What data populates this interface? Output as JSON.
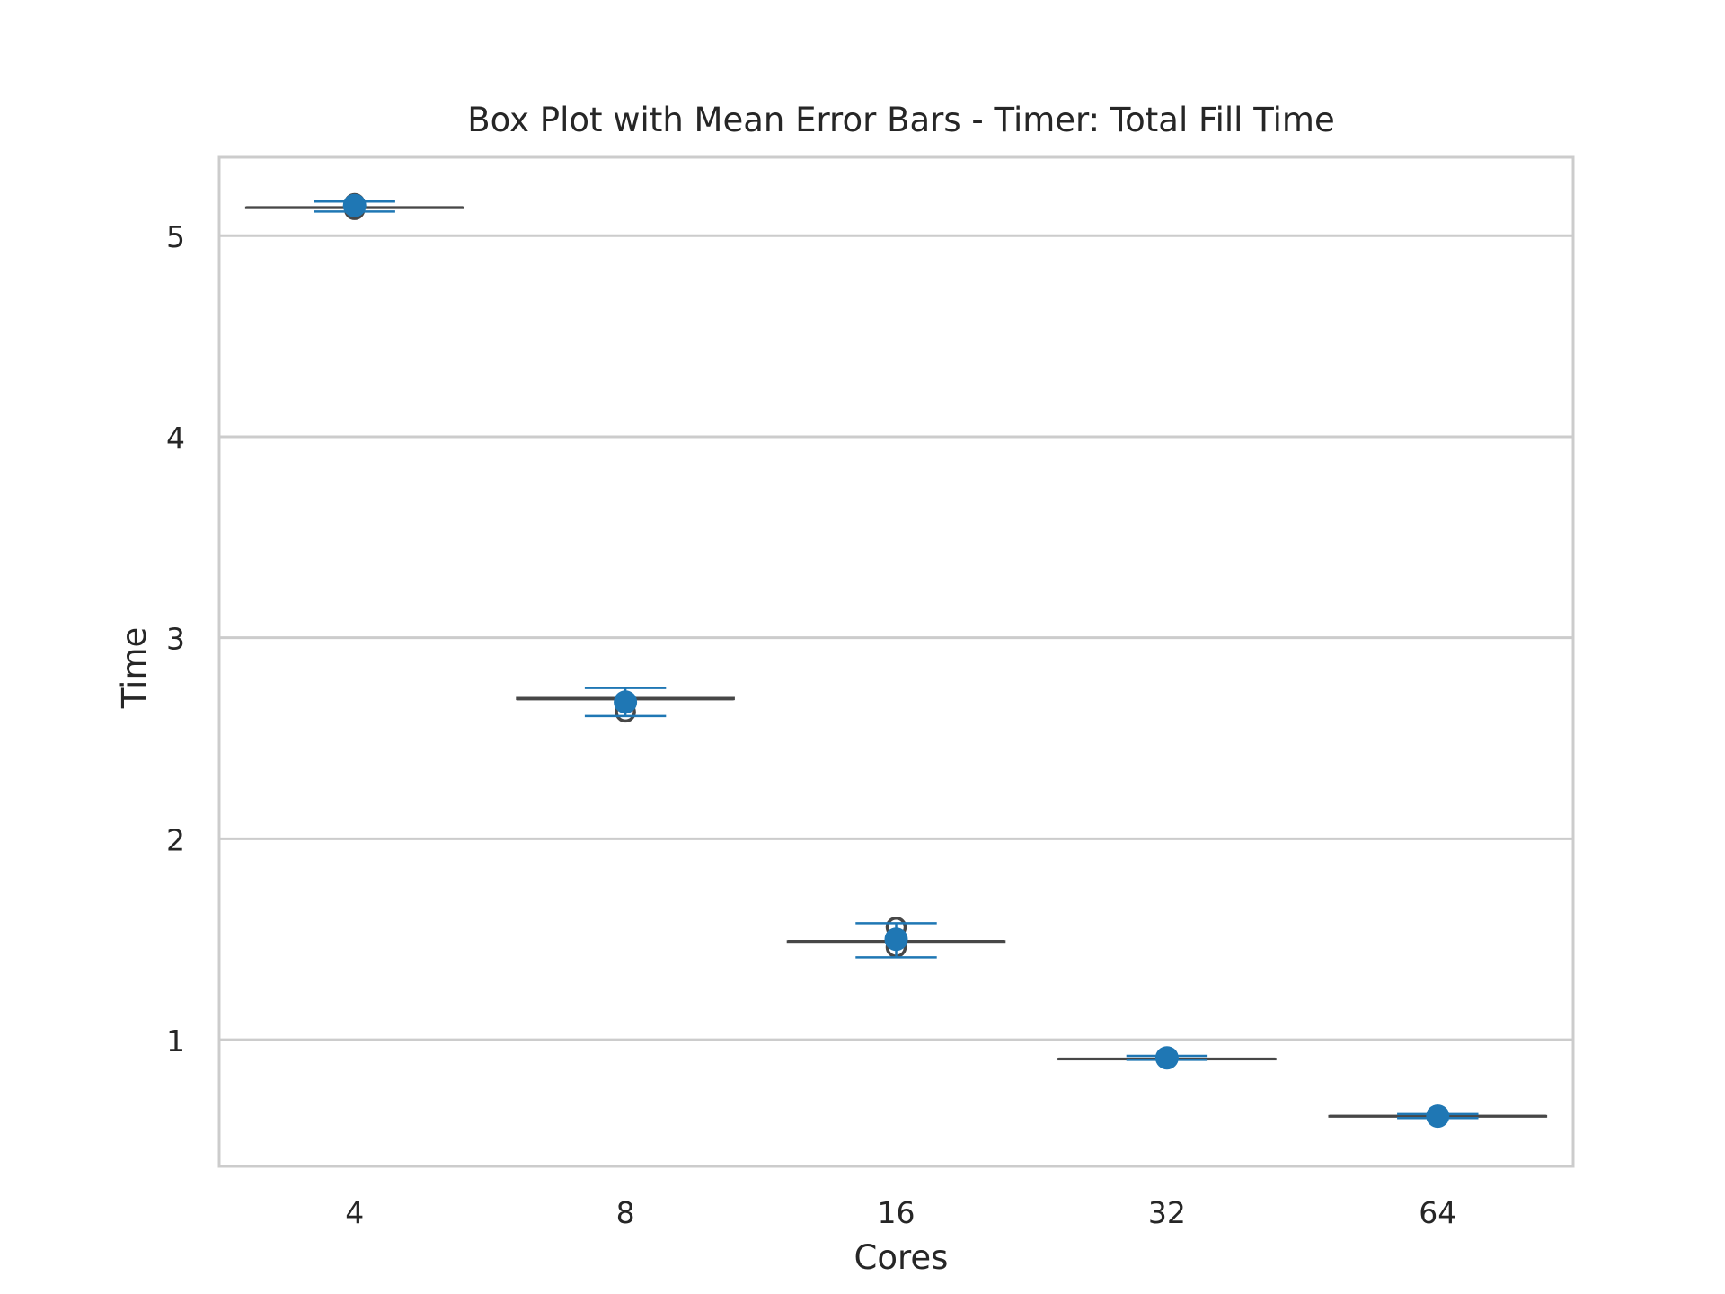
{
  "chart_data": {
    "type": "box",
    "title": "Box Plot with Mean Error Bars - Timer: Total Fill Time",
    "xlabel": "Cores",
    "ylabel": "Time",
    "categories": [
      "4",
      "8",
      "16",
      "32",
      "64"
    ],
    "ylim": [
      0.37,
      5.39
    ],
    "yticks": [
      1,
      2,
      3,
      4,
      5
    ],
    "grid": "horizontal",
    "colors": {
      "box_line": "#474747",
      "mean": "#1f77b4",
      "grid": "#cccccc",
      "frame": "#cccccc"
    },
    "boxes": [
      {
        "category": "4",
        "q1": 5.14,
        "median": 5.14,
        "q3": 5.14,
        "whisker_low": 5.14,
        "whisker_high": 5.14,
        "outliers": [
          5.13,
          5.16
        ]
      },
      {
        "category": "8",
        "q1": 2.695,
        "median": 2.695,
        "q3": 2.7,
        "whisker_low": 2.69,
        "whisker_high": 2.7,
        "outliers": [
          2.63
        ]
      },
      {
        "category": "16",
        "q1": 1.49,
        "median": 1.49,
        "q3": 1.49,
        "whisker_low": 1.49,
        "whisker_high": 1.49,
        "outliers": [
          1.56,
          1.46
        ]
      },
      {
        "category": "32",
        "q1": 0.905,
        "median": 0.905,
        "q3": 0.905,
        "whisker_low": 0.905,
        "whisker_high": 0.905,
        "outliers": []
      },
      {
        "category": "64",
        "q1": 0.62,
        "median": 0.62,
        "q3": 0.62,
        "whisker_low": 0.62,
        "whisker_high": 0.62,
        "outliers": []
      }
    ],
    "means": [
      {
        "category": "4",
        "mean": 5.15,
        "err_low": 5.12,
        "err_high": 5.17
      },
      {
        "category": "8",
        "mean": 2.68,
        "err_low": 2.61,
        "err_high": 2.75
      },
      {
        "category": "16",
        "mean": 1.5,
        "err_low": 1.41,
        "err_high": 1.58
      },
      {
        "category": "32",
        "mean": 0.91,
        "err_low": 0.9,
        "err_high": 0.92
      },
      {
        "category": "64",
        "mean": 0.62,
        "err_low": 0.61,
        "err_high": 0.63
      }
    ]
  }
}
